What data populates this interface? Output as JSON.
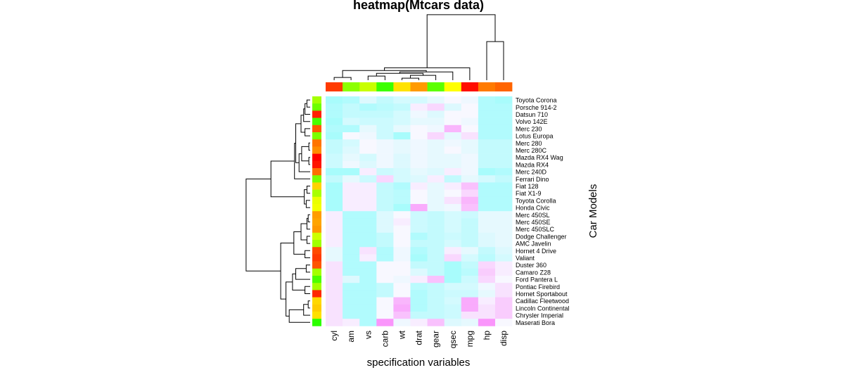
{
  "chart_data": {
    "type": "heatmap",
    "title": "heatmap(Mtcars data)",
    "xlabel": "specification variables",
    "ylabel": "Car Models",
    "columns": [
      "cyl",
      "am",
      "vs",
      "carb",
      "wt",
      "drat",
      "gear",
      "qsec",
      "mpg",
      "hp",
      "disp"
    ],
    "rows": [
      "Toyota Corona",
      "Porsche 914-2",
      "Datsun 710",
      "Volvo 142E",
      "Merc 230",
      "Lotus Europa",
      "Merc 280",
      "Merc 280C",
      "Mazda RX4 Wag",
      "Mazda RX4",
      "Merc 240D",
      "Ferrari Dino",
      "Fiat 128",
      "Fiat X1-9",
      "Toyota Corolla",
      "Honda Civic",
      "Merc 450SL",
      "Merc 450SE",
      "Merc 450SLC",
      "Dodge Challenger",
      "AMC Javelin",
      "Hornet 4 Drive",
      "Valiant",
      "Duster 360",
      "Camaro Z28",
      "Ford Pantera L",
      "Pontiac Firebird",
      "Hornet Sportabout",
      "Cadillac Fleetwood",
      "Lincoln Continental",
      "Chrysler Imperial",
      "Maserati Bora"
    ],
    "values": [
      [
        0.05,
        0.1,
        0.35,
        0.2,
        0.3,
        0.3,
        0.4,
        0.5,
        0.45,
        0.1,
        0.05
      ],
      [
        0.1,
        0.2,
        0.1,
        0.15,
        0.2,
        0.55,
        0.65,
        0.35,
        0.5,
        0.1,
        0.1
      ],
      [
        0.1,
        0.2,
        0.2,
        0.2,
        0.3,
        0.45,
        0.35,
        0.5,
        0.5,
        0.1,
        0.1
      ],
      [
        0.05,
        0.3,
        0.25,
        0.25,
        0.3,
        0.4,
        0.4,
        0.5,
        0.45,
        0.1,
        0.1
      ],
      [
        0.1,
        0.1,
        0.4,
        0.25,
        0.4,
        0.5,
        0.45,
        0.8,
        0.5,
        0.1,
        0.1
      ],
      [
        0.05,
        0.5,
        0.45,
        0.25,
        0.05,
        0.5,
        0.65,
        0.4,
        0.6,
        0.1,
        0.1
      ],
      [
        0.2,
        0.3,
        0.5,
        0.45,
        0.4,
        0.45,
        0.4,
        0.45,
        0.4,
        0.2,
        0.2
      ],
      [
        0.2,
        0.35,
        0.5,
        0.45,
        0.4,
        0.45,
        0.4,
        0.5,
        0.4,
        0.2,
        0.2
      ],
      [
        0.25,
        0.4,
        0.3,
        0.45,
        0.35,
        0.45,
        0.4,
        0.4,
        0.45,
        0.2,
        0.2
      ],
      [
        0.25,
        0.45,
        0.35,
        0.45,
        0.35,
        0.45,
        0.4,
        0.4,
        0.45,
        0.2,
        0.2
      ],
      [
        0.05,
        0.05,
        0.55,
        0.25,
        0.3,
        0.4,
        0.35,
        0.55,
        0.45,
        0.05,
        0.1
      ],
      [
        0.2,
        0.4,
        0.25,
        0.65,
        0.3,
        0.35,
        0.55,
        0.2,
        0.4,
        0.3,
        0.2
      ],
      [
        0.05,
        0.55,
        0.55,
        0.2,
        0.1,
        0.55,
        0.4,
        0.55,
        0.75,
        0.1,
        0.1
      ],
      [
        0.05,
        0.55,
        0.55,
        0.2,
        0.15,
        0.5,
        0.4,
        0.5,
        0.65,
        0.1,
        0.1
      ],
      [
        0.05,
        0.55,
        0.55,
        0.2,
        0.15,
        0.5,
        0.4,
        0.6,
        0.8,
        0.1,
        0.1
      ],
      [
        0.05,
        0.55,
        0.55,
        0.2,
        0.05,
        0.85,
        0.4,
        0.45,
        0.75,
        0.1,
        0.1
      ],
      [
        0.55,
        0.1,
        0.1,
        0.35,
        0.5,
        0.25,
        0.2,
        0.3,
        0.25,
        0.4,
        0.4
      ],
      [
        0.55,
        0.1,
        0.1,
        0.35,
        0.55,
        0.25,
        0.2,
        0.3,
        0.2,
        0.4,
        0.4
      ],
      [
        0.55,
        0.1,
        0.1,
        0.35,
        0.5,
        0.25,
        0.2,
        0.3,
        0.2,
        0.4,
        0.4
      ],
      [
        0.55,
        0.1,
        0.1,
        0.2,
        0.5,
        0.1,
        0.2,
        0.25,
        0.2,
        0.35,
        0.4
      ],
      [
        0.55,
        0.1,
        0.1,
        0.2,
        0.5,
        0.2,
        0.2,
        0.3,
        0.2,
        0.35,
        0.4
      ],
      [
        0.4,
        0.1,
        0.6,
        0.1,
        0.45,
        0.1,
        0.2,
        0.55,
        0.4,
        0.2,
        0.35
      ],
      [
        0.4,
        0.1,
        0.55,
        0.1,
        0.45,
        0.05,
        0.2,
        0.65,
        0.3,
        0.15,
        0.3
      ],
      [
        0.6,
        0.1,
        0.1,
        0.5,
        0.5,
        0.2,
        0.2,
        0.05,
        0.2,
        0.65,
        0.55
      ],
      [
        0.6,
        0.1,
        0.1,
        0.5,
        0.5,
        0.35,
        0.2,
        0.05,
        0.15,
        0.7,
        0.55
      ],
      [
        0.6,
        0.35,
        0.1,
        0.5,
        0.45,
        0.55,
        0.75,
        0.05,
        0.25,
        0.65,
        0.5
      ],
      [
        0.6,
        0.1,
        0.1,
        0.2,
        0.5,
        0.15,
        0.2,
        0.3,
        0.3,
        0.45,
        0.6
      ],
      [
        0.6,
        0.1,
        0.1,
        0.2,
        0.5,
        0.1,
        0.2,
        0.25,
        0.25,
        0.4,
        0.6
      ],
      [
        0.6,
        0.1,
        0.1,
        0.5,
        0.8,
        0.1,
        0.2,
        0.3,
        0.85,
        0.55,
        0.7
      ],
      [
        0.6,
        0.1,
        0.1,
        0.5,
        0.85,
        0.1,
        0.2,
        0.25,
        0.85,
        0.6,
        0.7
      ],
      [
        0.6,
        0.1,
        0.1,
        0.5,
        0.75,
        0.2,
        0.2,
        0.25,
        0.6,
        0.6,
        0.7
      ],
      [
        0.6,
        0.55,
        0.1,
        0.95,
        0.45,
        0.55,
        0.75,
        0.35,
        0.4,
        0.95,
        0.5
      ]
    ],
    "column_side_colors": [
      "#ff3a00",
      "#8cff00",
      "#c8ff00",
      "#3cff00",
      "#ffe200",
      "#ff9a00",
      "#5cff00",
      "#ffff00",
      "#ff0e00",
      "#ff7a00",
      "#ff6400"
    ],
    "row_side_colors": [
      "#a4ff00",
      "#6cff00",
      "#ff2000",
      "#48ff00",
      "#ff5a00",
      "#7cff00",
      "#ff7400",
      "#ff8c00",
      "#ff0000",
      "#ff1400",
      "#ff7000",
      "#7cff00",
      "#ffd200",
      "#a8ff00",
      "#eaff00",
      "#f2ff00",
      "#ff9c00",
      "#ffa400",
      "#ff9800",
      "#cdff00",
      "#a0ff00",
      "#ff4a00",
      "#ff3a00",
      "#ff5400",
      "#a4ff00",
      "#4cff00",
      "#a4ff00",
      "#ff2800",
      "#ffd800",
      "#ffcc00",
      "#ffe000",
      "#2cff00"
    ],
    "colors": {
      "low": "#9ffcfc",
      "mid": "#f8f8ff",
      "high": "#fa8afa"
    }
  }
}
